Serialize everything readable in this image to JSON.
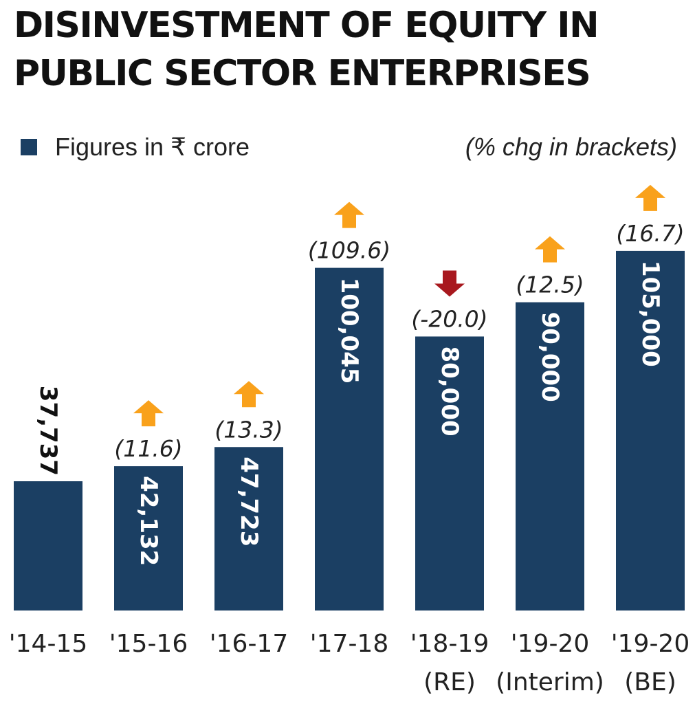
{
  "chart_data": {
    "type": "bar",
    "title": "DISINVESTMENT OF EQUITY IN PUBLIC SECTOR ENTERPRISES",
    "legend": {
      "label": "Figures in ₹ crore",
      "placement": "top-left"
    },
    "note": "(% chg in brackets)",
    "categories": [
      [
        "'14-15"
      ],
      [
        "'15-16"
      ],
      [
        "'16-17"
      ],
      [
        "'17-18"
      ],
      [
        "'18-19",
        "(RE)"
      ],
      [
        "'19-20",
        "(Interim)"
      ],
      [
        "'19-20",
        "(BE)"
      ]
    ],
    "values": [
      37737,
      42132,
      47723,
      100045,
      80000,
      90000,
      105000
    ],
    "value_labels": [
      "37,737",
      "42,132",
      "47,723",
      "100,045",
      "80,000",
      "90,000",
      "105,000"
    ],
    "pct_change": [
      "",
      "(11.6)",
      "(13.3)",
      "(109.6)",
      "(-20.0)",
      "(12.5)",
      "(16.7)"
    ],
    "change_direction": [
      "",
      "up",
      "up",
      "up",
      "down",
      "up",
      "up"
    ],
    "ylim": [
      0,
      110000
    ],
    "grid": false,
    "colors": {
      "bar": "#1b3f63",
      "up_arrow": "#f9a11b",
      "down_arrow": "#a8181e",
      "value_text": "#ffffff"
    }
  }
}
